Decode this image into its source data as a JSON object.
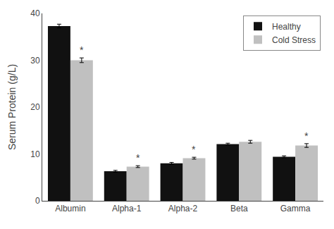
{
  "chart_data": {
    "type": "bar",
    "categories": [
      "Albumin",
      "Alpha-1",
      "Alpha-2",
      "Beta",
      "Gamma"
    ],
    "series": [
      {
        "name": "Healthy",
        "color": "#111111",
        "values": [
          37.3,
          6.3,
          8.0,
          12.1,
          9.4
        ],
        "errors": [
          0.4,
          0.2,
          0.2,
          0.2,
          0.2
        ]
      },
      {
        "name": "Cold Stress",
        "color": "#c0c0c0",
        "values": [
          30.0,
          7.3,
          9.1,
          12.6,
          11.8
        ],
        "errors": [
          0.5,
          0.2,
          0.2,
          0.3,
          0.4
        ]
      }
    ],
    "y_label": "Serum Protein (g/L)",
    "ylim": [
      0,
      40
    ],
    "yticks": [
      0,
      10,
      20,
      30,
      40
    ],
    "grid": false,
    "legend": "upper right",
    "annotations": [
      {
        "text": "*",
        "category": "Albumin",
        "series": "Cold Stress"
      },
      {
        "text": "*",
        "category": "Alpha-1",
        "series": "Cold Stress"
      },
      {
        "text": "*",
        "category": "Alpha-2",
        "series": "Cold Stress"
      },
      {
        "text": "*",
        "category": "Gamma",
        "series": "Cold Stress"
      }
    ]
  }
}
